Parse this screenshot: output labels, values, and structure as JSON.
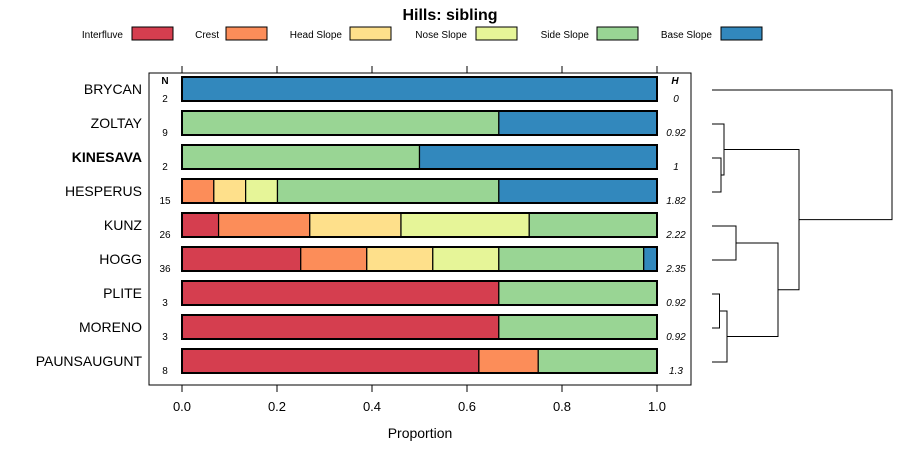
{
  "chart_data": {
    "type": "bar",
    "stacked": true,
    "orientation": "horizontal",
    "title": "Hills: sibling",
    "xlabel": "Proportion",
    "xlim": [
      0,
      1
    ],
    "xticks": [
      "0.0",
      "0.2",
      "0.4",
      "0.6",
      "0.8",
      "1.0"
    ],
    "xtick_values": [
      0,
      0.2,
      0.4,
      0.6,
      0.8,
      1.0
    ],
    "n_header": "N",
    "h_header": "H",
    "legend": [
      {
        "name": "Interfluve",
        "color": "#d53e4f"
      },
      {
        "name": "Crest",
        "color": "#fc8d59"
      },
      {
        "name": "Head Slope",
        "color": "#fee08b"
      },
      {
        "name": "Nose Slope",
        "color": "#e6f598"
      },
      {
        "name": "Side Slope",
        "color": "#99d594"
      },
      {
        "name": "Base Slope",
        "color": "#3288bd"
      }
    ],
    "categories": [
      "BRYCAN",
      "ZOLTAY",
      "KINESAVA",
      "HESPERUS",
      "KUNZ",
      "HOGG",
      "PLITE",
      "MORENO",
      "PAUNSAUGUNT"
    ],
    "highlight": "KINESAVA",
    "n": [
      "2",
      "9",
      "2",
      "15",
      "26",
      "36",
      "3",
      "3",
      "8"
    ],
    "h": [
      "0",
      "0.92",
      "1",
      "1.82",
      "2.22",
      "2.35",
      "0.92",
      "0.92",
      "1.3"
    ],
    "series": [
      {
        "name": "Interfluve",
        "values": [
          0,
          0,
          0,
          0,
          0.077,
          0.25,
          0.667,
          0.667,
          0.625
        ]
      },
      {
        "name": "Crest",
        "values": [
          0,
          0,
          0,
          0.067,
          0.192,
          0.139,
          0,
          0,
          0.125
        ]
      },
      {
        "name": "Head Slope",
        "values": [
          0,
          0,
          0,
          0.067,
          0.192,
          0.139,
          0,
          0,
          0
        ]
      },
      {
        "name": "Nose Slope",
        "values": [
          0,
          0,
          0,
          0.067,
          0.27,
          0.139,
          0,
          0,
          0
        ]
      },
      {
        "name": "Side Slope",
        "values": [
          0,
          0.667,
          0.5,
          0.466,
          0.269,
          0.305,
          0.333,
          0.333,
          0.25
        ]
      },
      {
        "name": "Base Slope",
        "values": [
          1,
          0.333,
          0.5,
          0.333,
          0,
          0.028,
          0,
          0,
          0
        ]
      }
    ],
    "dendrogram": {
      "leaves": [
        "BRYCAN",
        "ZOLTAY",
        "KINESAVA",
        "HESPERUS",
        "KUNZ",
        "HOGG",
        "PLITE",
        "MORENO",
        "PAUNSAUGUNT"
      ],
      "merges": [
        {
          "a": "L2",
          "b": "L3",
          "height": 0.03
        },
        {
          "a": "L6",
          "b": "L7",
          "height": 0.025
        },
        {
          "a": "L1",
          "b": "M0",
          "height": 0.04
        },
        {
          "a": "M1",
          "b": "L8",
          "height": 0.05
        },
        {
          "a": "L4",
          "b": "L5",
          "height": 0.08
        },
        {
          "a": "M4",
          "b": "M3",
          "height": 0.22
        },
        {
          "a": "M2",
          "b": "M5",
          "height": 0.29
        },
        {
          "a": "L0",
          "b": "M6",
          "height": 0.6
        }
      ]
    }
  }
}
